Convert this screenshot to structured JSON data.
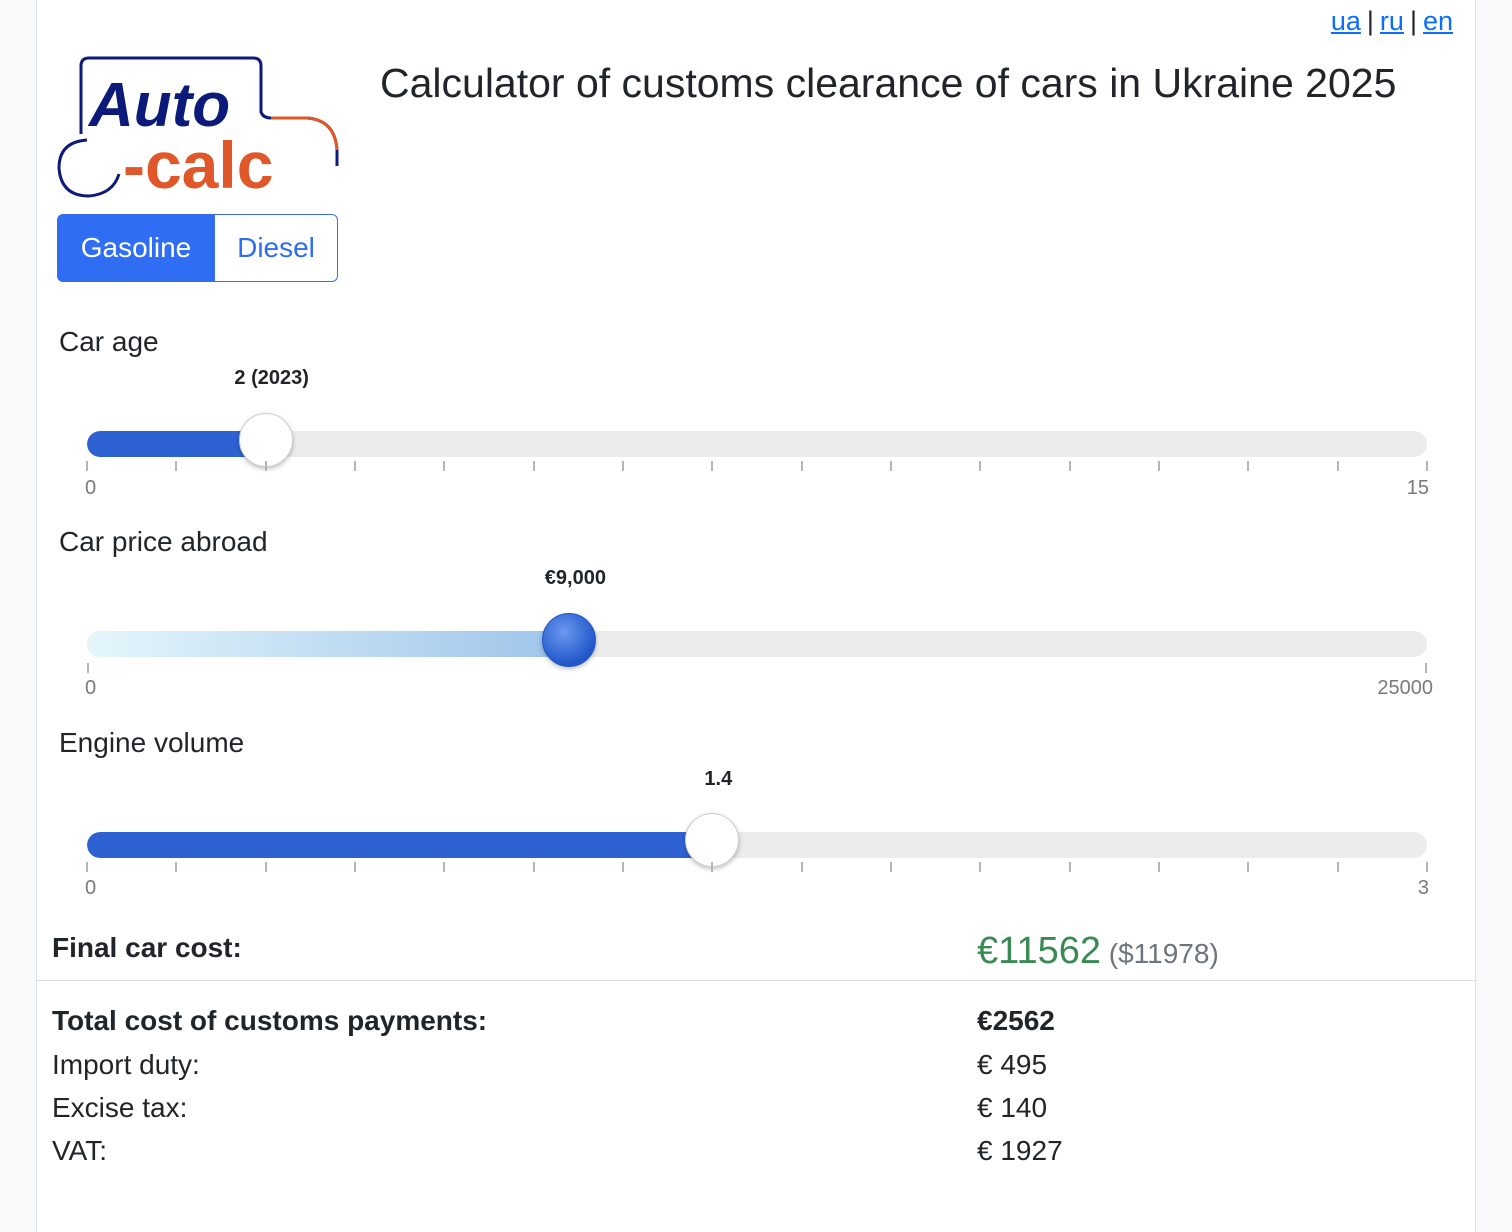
{
  "lang": {
    "ua": "ua",
    "ru": "ru",
    "en": "en",
    "sep": "|"
  },
  "logo": {
    "line1": "Auto",
    "line2": "-calc",
    "color_primary": "#0c1a7a",
    "color_accent": "#e0572a"
  },
  "title": "Calculator of customs clearance of cars in Ukraine 2025",
  "fuel": {
    "gasoline": "Gasoline",
    "diesel": "Diesel",
    "selected": "Gasoline"
  },
  "sliders": {
    "age": {
      "label": "Car age",
      "value_text": "2 (2023)",
      "value": 2,
      "min": 0,
      "max": 15,
      "min_label": "0",
      "max_label": "15"
    },
    "price": {
      "label": "Car price abroad",
      "value_text": "€9,000",
      "value": 9000,
      "min": 0,
      "max": 25000,
      "min_label": "0",
      "max_label": "25000"
    },
    "engine": {
      "label": "Engine volume",
      "value_text": "1.4",
      "value": 1.4,
      "min": 0,
      "max": 3,
      "min_label": "0",
      "max_label": "3"
    }
  },
  "results": {
    "final_label": "Final car cost:",
    "final_eur": "€11562",
    "final_usd": "($11978)",
    "total_label": "Total cost of customs payments:",
    "total_value": "€2562",
    "import_label": "Import duty:",
    "import_value": "€ 495",
    "excise_label": "Excise tax:",
    "excise_value": "€ 140",
    "vat_label": "VAT:",
    "vat_value": "€ 1927"
  }
}
